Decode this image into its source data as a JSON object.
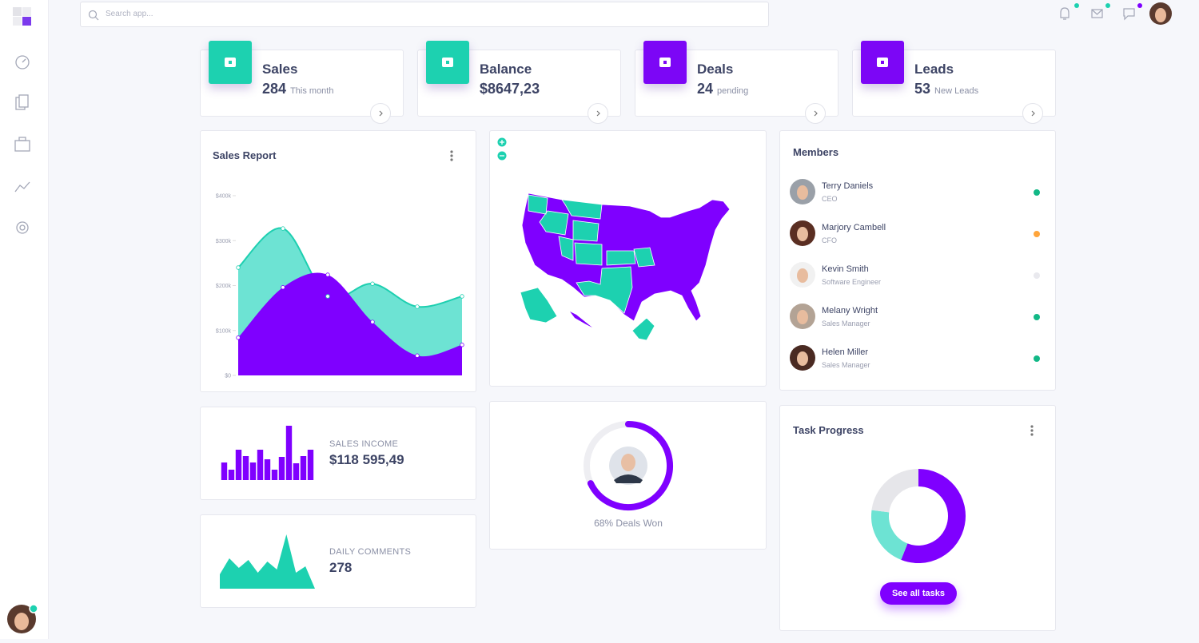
{
  "search": {
    "placeholder": "Search app..."
  },
  "stats": [
    {
      "title": "Sales",
      "value": 284,
      "note": "This month",
      "color": "#1dd1b0"
    },
    {
      "title": "Balance",
      "value": "$8647,23",
      "color": "#1dd1b0"
    },
    {
      "title": "Deals",
      "value": 24,
      "note": "pending",
      "color": "#7c06f6"
    },
    {
      "title": "Leads",
      "value": 53,
      "note": "New Leads",
      "color": "#7c06f6"
    }
  ],
  "sales_report": {
    "type": "area",
    "title": "Sales Report",
    "ylim": [
      0,
      400000
    ],
    "yticks": [
      {
        "value": 0,
        "label": "$0"
      },
      {
        "value": 100000,
        "label": "$100k"
      },
      {
        "value": 200000,
        "label": "$200k"
      },
      {
        "value": 300000,
        "label": "$300k"
      },
      {
        "value": 400000,
        "label": "$400k"
      }
    ],
    "series": [
      {
        "color": "#6de3d3",
        "values": [
          240000,
          327000,
          176000,
          204000,
          153000,
          176000
        ]
      },
      {
        "color": "#7f00ff",
        "values": [
          84000,
          196000,
          224000,
          119000,
          44000,
          68000
        ]
      }
    ]
  },
  "members": {
    "title": "Members",
    "list": [
      {
        "name": "Terry Daniels",
        "role": "CEO",
        "status": "#12b886"
      },
      {
        "name": "Marjory Cambell",
        "role": "CFO",
        "status": "#ffa53b"
      },
      {
        "name": "Kevin Smith",
        "role": "Software Engineer",
        "status": "#e9e9ee"
      },
      {
        "name": "Melany Wright",
        "role": "Sales Manager",
        "status": "#12b886"
      },
      {
        "name": "Helen Miller",
        "role": "Sales Manager",
        "status": "#12b886"
      }
    ]
  },
  "sales_income": {
    "type": "bar",
    "label": "SALES INCOME",
    "amount": "$118 595,49",
    "color": "#7f00ff",
    "values": [
      22,
      13,
      38,
      30,
      22,
      38,
      26,
      13,
      29,
      68,
      21,
      30,
      38
    ]
  },
  "daily_comments": {
    "type": "area",
    "label": "DAILY COMMENTS",
    "amount": 278,
    "color": "#1dd1b0",
    "values": [
      18,
      38,
      26,
      36,
      20,
      34,
      24,
      68,
      20,
      28,
      0
    ]
  },
  "deals_won": {
    "type": "ring",
    "value": 68,
    "label": "68% Deals Won",
    "color": "#7f00ff"
  },
  "task_progress": {
    "type": "donut",
    "title": "Task Progress",
    "button": "See all tasks",
    "series": [
      {
        "color": "#7f00ff",
        "value": 56
      },
      {
        "color": "#6de3d3",
        "value": 21
      },
      {
        "color": "#e6e6ea",
        "value": 23
      }
    ]
  }
}
